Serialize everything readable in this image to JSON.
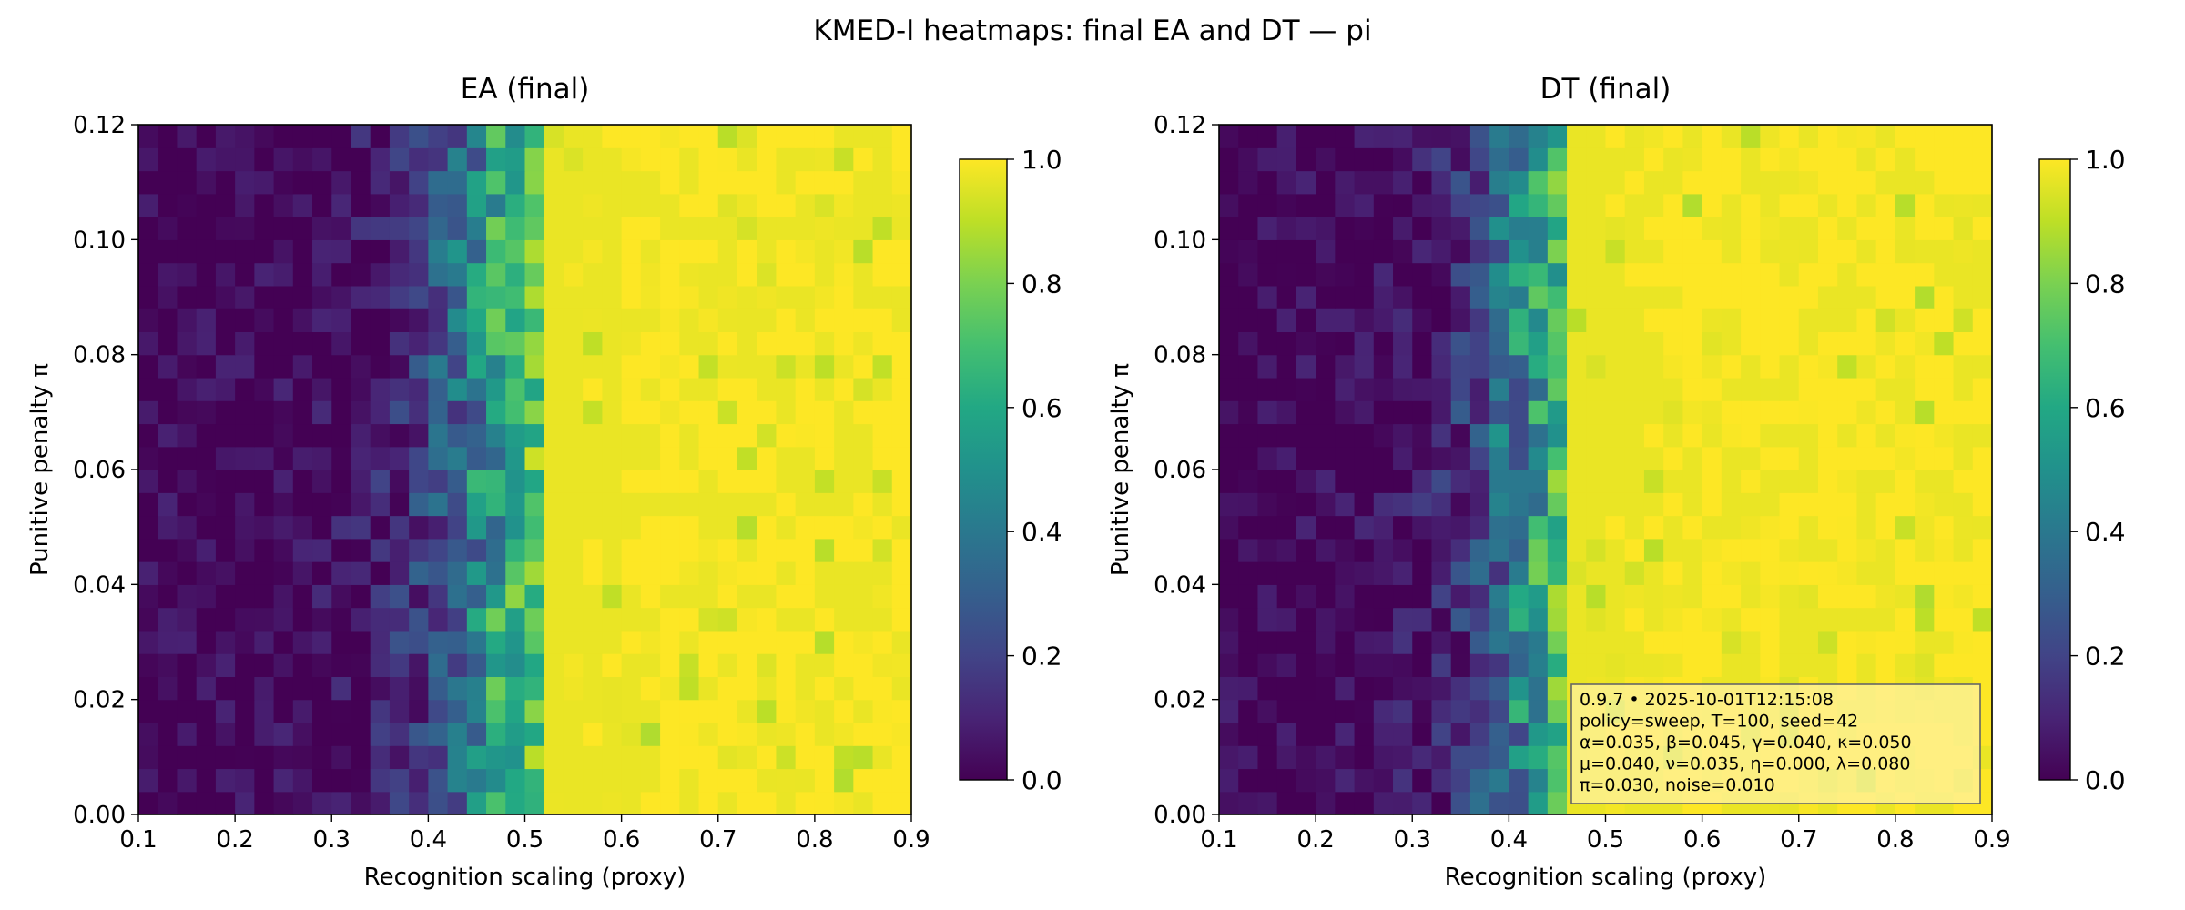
{
  "suptitle": "KMED-I heatmaps: final EA and DT — pi",
  "chart_data": [
    {
      "type": "heatmap",
      "title": "EA (final)",
      "xlabel": "Recognition scaling (proxy)",
      "ylabel": "Punitive penalty π",
      "xlim": [
        0.1,
        0.9
      ],
      "ylim": [
        0.0,
        0.12
      ],
      "xticks": [
        "0.1",
        "0.2",
        "0.3",
        "0.4",
        "0.5",
        "0.6",
        "0.7",
        "0.8",
        "0.9"
      ],
      "yticks": [
        "0.00",
        "0.02",
        "0.04",
        "0.06",
        "0.08",
        "0.10",
        "0.12"
      ],
      "grid_cols": 40,
      "grid_rows": 30,
      "colormap": "viridis",
      "colorbar": {
        "min": 0.0,
        "max": 1.0,
        "ticks": [
          "0.0",
          "0.2",
          "0.4",
          "0.6",
          "0.8",
          "1.0"
        ]
      },
      "transition_x": 0.46,
      "transition_width": 0.045,
      "grid": false
    },
    {
      "type": "heatmap",
      "title": "DT (final)",
      "xlabel": "Recognition scaling (proxy)",
      "ylabel": "Punitive penalty π",
      "xlim": [
        0.1,
        0.9
      ],
      "ylim": [
        0.0,
        0.12
      ],
      "xticks": [
        "0.1",
        "0.2",
        "0.3",
        "0.4",
        "0.5",
        "0.6",
        "0.7",
        "0.8",
        "0.9"
      ],
      "yticks": [
        "0.00",
        "0.02",
        "0.04",
        "0.06",
        "0.08",
        "0.10",
        "0.12"
      ],
      "grid_cols": 40,
      "grid_rows": 30,
      "colormap": "viridis",
      "colorbar": {
        "min": 0.0,
        "max": 1.0,
        "ticks": [
          "0.0",
          "0.2",
          "0.4",
          "0.6",
          "0.8",
          "1.0"
        ]
      },
      "transition_x": 0.42,
      "transition_width": 0.04,
      "grid": false,
      "annotation": {
        "lines": [
          "0.9.7  •  2025-10-01T12:15:08",
          "policy=sweep, T=100, seed=42",
          "α=0.035, β=0.045, γ=0.040, κ=0.050",
          "μ=0.040, ν=0.035, η=0.000, λ=0.080",
          "π=0.030, noise=0.010"
        ],
        "placement": "bottom-right",
        "background": "#fff2a0"
      }
    }
  ]
}
